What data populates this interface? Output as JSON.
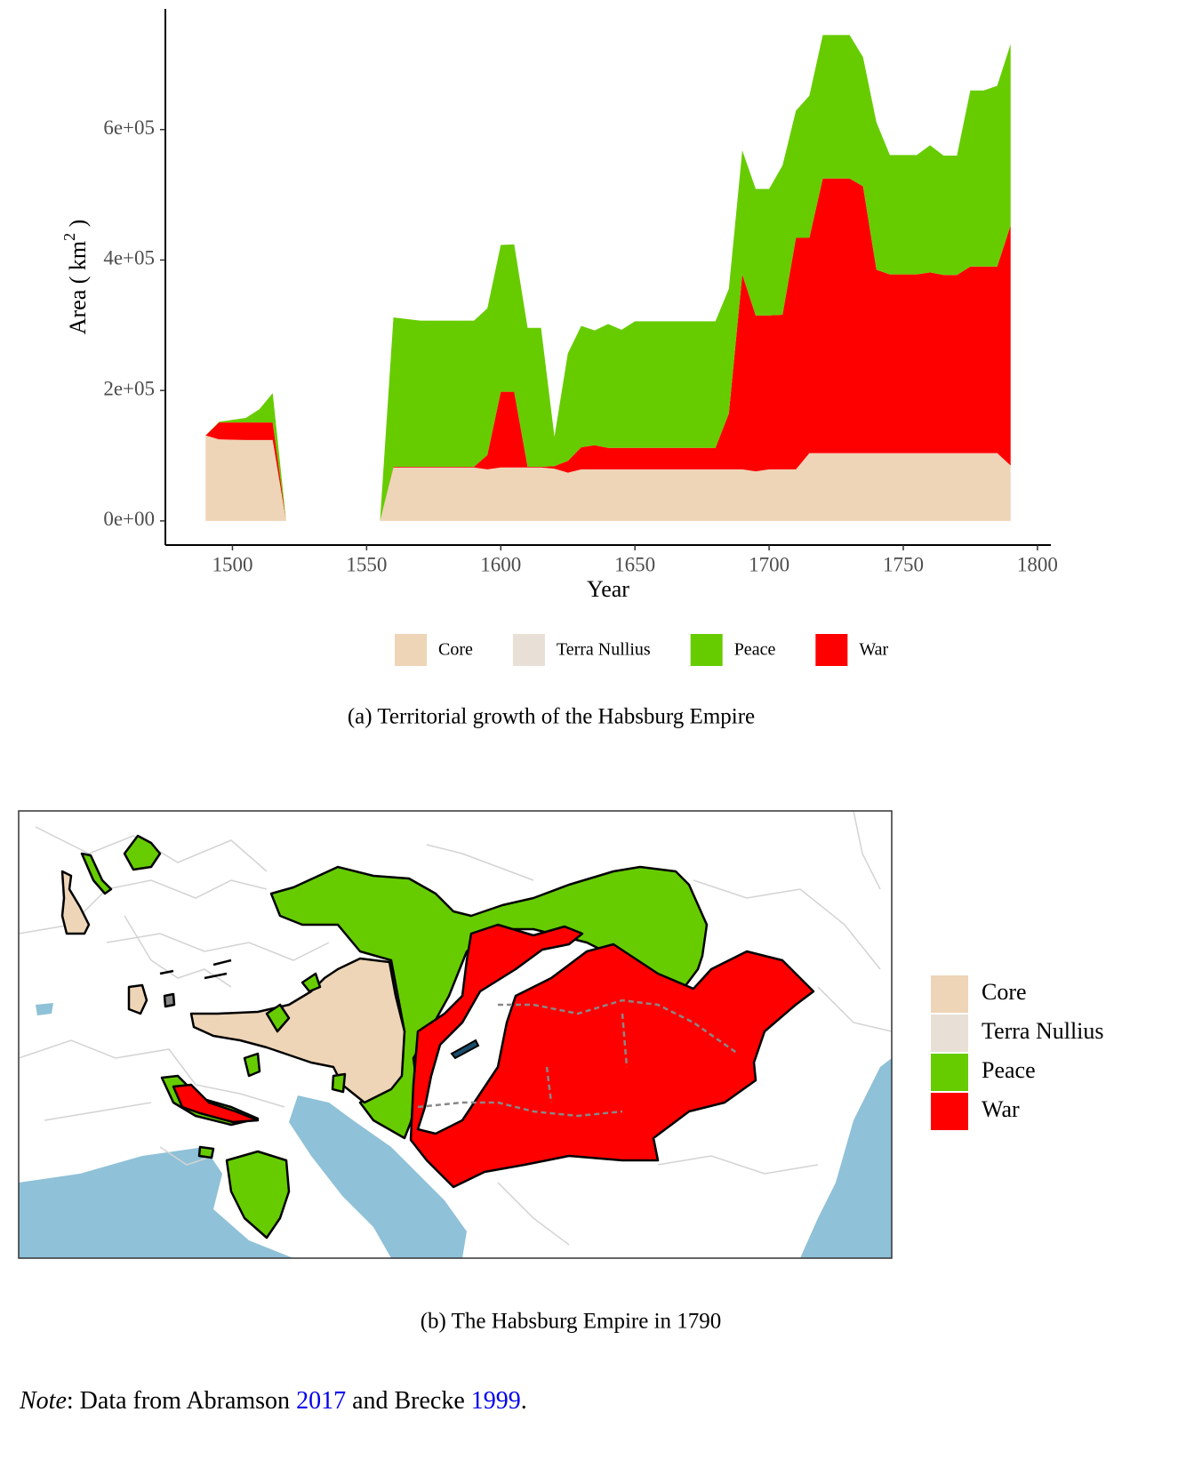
{
  "chart_data": [
    {
      "type": "stacked-area",
      "caption": "(a) Territorial growth of the Habsburg Empire",
      "xlabel": "Year",
      "ylabel": {
        "text": "Area ( km",
        "superscript": "2",
        "close": " )"
      },
      "xlim": [
        1475,
        1805
      ],
      "ylim": [
        -37000,
        785000
      ],
      "xticks": [
        1500,
        1550,
        1600,
        1650,
        1700,
        1750,
        1800
      ],
      "yticks": [
        {
          "value": 0,
          "label": "0e+00"
        },
        {
          "value": 200000,
          "label": "2e+05"
        },
        {
          "value": 400000,
          "label": "4e+05"
        },
        {
          "value": 600000,
          "label": "6e+05"
        }
      ],
      "x": [
        1490,
        1495,
        1505,
        1510,
        1515,
        1520,
        1555,
        1560,
        1570,
        1590,
        1595,
        1600,
        1605,
        1610,
        1615,
        1620,
        1625,
        1630,
        1635,
        1640,
        1645,
        1650,
        1660,
        1680,
        1685,
        1690,
        1695,
        1700,
        1705,
        1710,
        1715,
        1720,
        1730,
        1735,
        1740,
        1745,
        1750,
        1755,
        1760,
        1765,
        1770,
        1775,
        1780,
        1785,
        1790
      ],
      "series": [
        {
          "name": "Core",
          "color": "#eed5b7",
          "values": [
            131000,
            125000,
            124000,
            124000,
            124000,
            0,
            0,
            82000,
            82000,
            82000,
            79000,
            82000,
            82000,
            82000,
            82000,
            80000,
            74000,
            79000,
            79000,
            79000,
            79000,
            79000,
            79000,
            79000,
            79000,
            79000,
            76000,
            79000,
            79000,
            79000,
            104000,
            104000,
            104000,
            104000,
            104000,
            104000,
            104000,
            104000,
            104000,
            104000,
            104000,
            104000,
            104000,
            104000,
            85000
          ]
        },
        {
          "name": "Terra Nullius",
          "color": "#e8e0d6",
          "values": [
            0,
            0,
            0,
            0,
            0,
            0,
            0,
            0,
            0,
            0,
            0,
            0,
            0,
            0,
            0,
            0,
            0,
            0,
            0,
            0,
            0,
            0,
            0,
            0,
            0,
            0,
            0,
            0,
            0,
            0,
            0,
            0,
            0,
            0,
            0,
            0,
            0,
            0,
            0,
            0,
            0,
            0,
            0,
            0,
            0
          ]
        },
        {
          "name": "Peace",
          "color": "#66cc00",
          "values": [
            0,
            1000,
            7000,
            20000,
            45000,
            0,
            0,
            229000,
            224000,
            224000,
            225000,
            225000,
            226000,
            213000,
            213000,
            45000,
            165000,
            186000,
            176000,
            190000,
            181000,
            194000,
            194000,
            194000,
            191000,
            190000,
            194000,
            194000,
            229000,
            195000,
            218000,
            220000,
            220000,
            198000,
            226000,
            183000,
            183000,
            183000,
            195000,
            183000,
            183000,
            270000,
            270000,
            277000,
            278000
          ]
        },
        {
          "name": "War",
          "color": "#ff0000",
          "values": [
            0,
            26000,
            27000,
            27000,
            27000,
            0,
            0,
            1000,
            1000,
            1000,
            22000,
            116000,
            116000,
            1000,
            1000,
            4000,
            18000,
            34000,
            37000,
            33000,
            33000,
            33000,
            33000,
            33000,
            86000,
            299000,
            239000,
            236000,
            237000,
            355000,
            330000,
            421000,
            421000,
            409000,
            281000,
            274000,
            274000,
            274000,
            277000,
            273000,
            273000,
            286000,
            286000,
            286000,
            368000
          ]
        }
      ]
    },
    {
      "type": "map",
      "caption": "(b) The Habsburg Empire in 1790",
      "legend": [
        {
          "name": "Core",
          "color": "#eed5b7"
        },
        {
          "name": "Terra Nullius",
          "color": "#e8e0d6"
        },
        {
          "name": "Peace",
          "color": "#66cc00"
        },
        {
          "name": "War",
          "color": "#ff0000"
        }
      ]
    }
  ],
  "note": {
    "label": "Note",
    "parts": [
      ": Data from Abramson ",
      "2017",
      " and Brecke ",
      "1999",
      "."
    ]
  }
}
